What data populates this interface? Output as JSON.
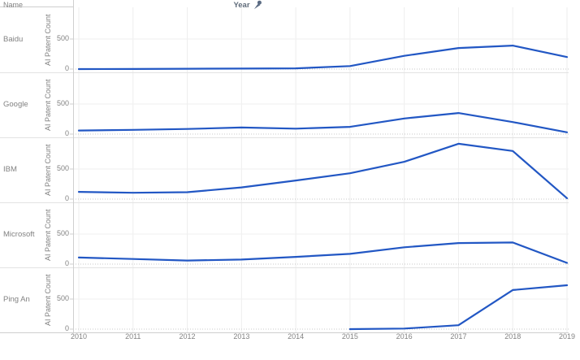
{
  "header": {
    "name_label": "Name"
  },
  "axis": {
    "y_title": "AI Patent Count",
    "y_ticks": [
      {
        "label": "500",
        "value": 500
      },
      {
        "label": "0",
        "value": 0
      }
    ],
    "x_title": "Year",
    "x_title_icon": "pin-icon",
    "years": [
      "2010",
      "2011",
      "2012",
      "2013",
      "2014",
      "2015",
      "2016",
      "2017",
      "2018",
      "2019"
    ]
  },
  "chart_data": {
    "type": "line",
    "layout": "small-multiples-rows",
    "x": [
      2010,
      2011,
      2012,
      2013,
      2014,
      2015,
      2016,
      2017,
      2018,
      2019
    ],
    "xlabel": "Year",
    "ylabel": "AI Patent Count",
    "ylim": [
      0,
      1000
    ],
    "y_tick_values": [
      0,
      500
    ],
    "grid": true,
    "legend": "none",
    "line_color": "#2257c4",
    "series": [
      {
        "name": "Baidu",
        "values": [
          0,
          2,
          5,
          8,
          12,
          50,
          220,
          350,
          390,
          200
        ]
      },
      {
        "name": "Google",
        "values": [
          60,
          70,
          85,
          110,
          90,
          120,
          260,
          350,
          200,
          30
        ]
      },
      {
        "name": "IBM",
        "values": [
          120,
          105,
          115,
          195,
          310,
          430,
          620,
          920,
          800,
          15
        ]
      },
      {
        "name": "Microsoft",
        "values": [
          110,
          85,
          60,
          75,
          120,
          170,
          280,
          350,
          360,
          20
        ]
      },
      {
        "name": "Ping An",
        "values": [
          null,
          null,
          null,
          null,
          null,
          0,
          10,
          65,
          650,
          730
        ]
      }
    ]
  },
  "colors": {
    "line": "#2257c4",
    "text": "#828282",
    "axis_title_text": "#5f6b7a",
    "pin_icon": "#5b6b83",
    "grid_vertical": "#eeeeee",
    "grid_500": "#efefef",
    "grid_zero_dotted": "#c9c9c9",
    "row_separator": "#e3e3e3",
    "panel_border": "#cfcfcf",
    "background": "#ffffff"
  }
}
